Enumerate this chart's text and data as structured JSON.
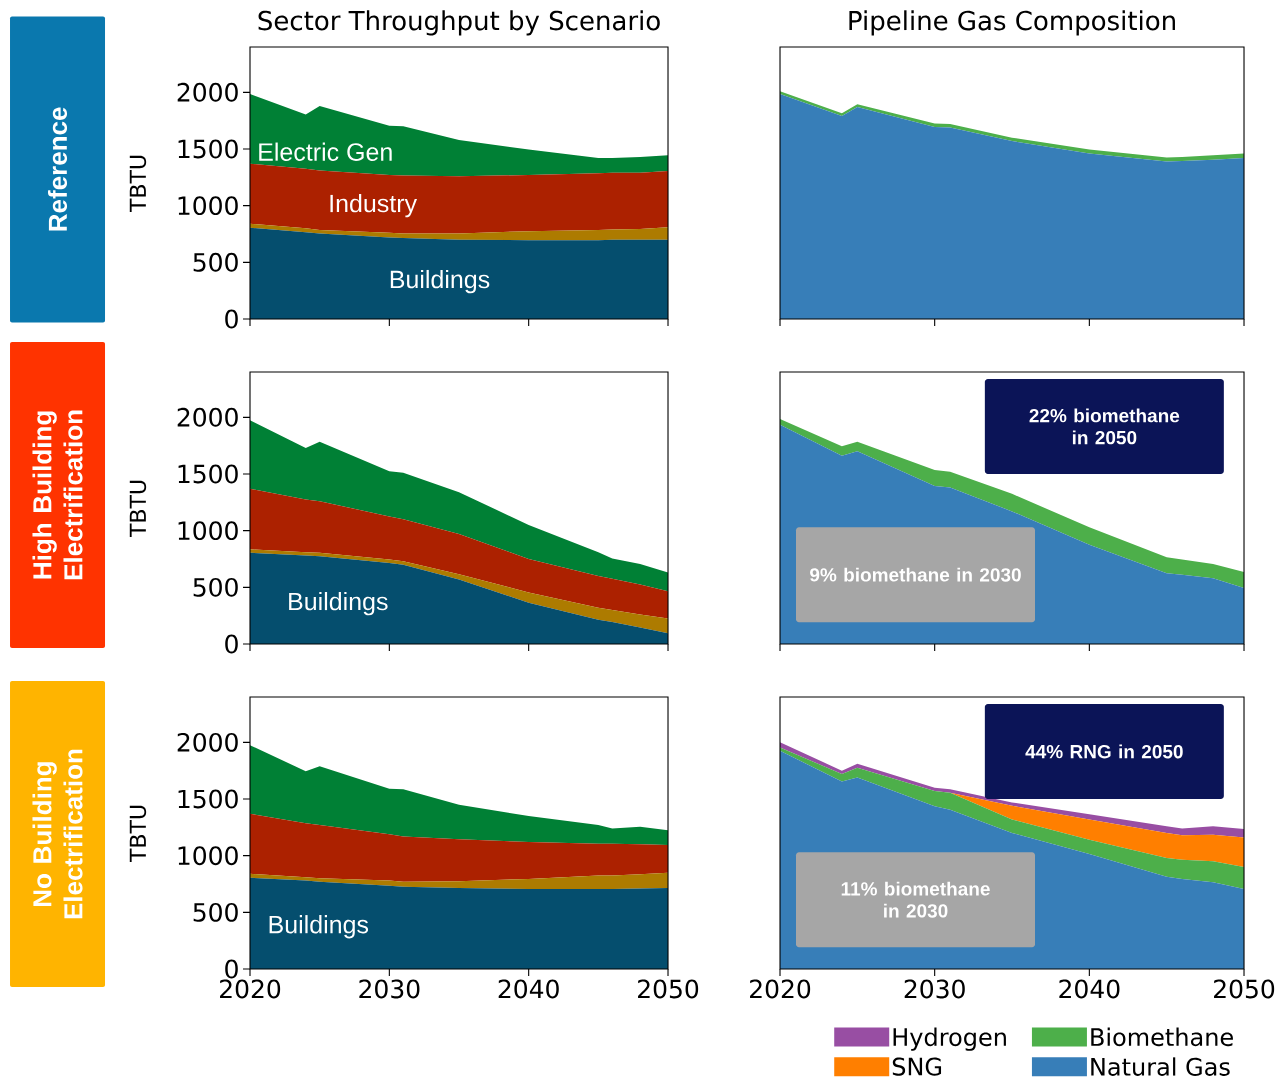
{
  "chart_data": [
    {
      "type": "area",
      "title": "Sector Throughput by Scenario",
      "ylabel": "TBTU",
      "stacked": true,
      "x": [
        2020,
        2024,
        2025,
        2030,
        2031,
        2035,
        2040,
        2045,
        2046,
        2048,
        2050
      ],
      "xlim": [
        2020,
        2050
      ],
      "ylim": [
        0,
        2400
      ],
      "xticks": [
        2020,
        2030,
        2040,
        2050
      ],
      "yticks": [
        0,
        500,
        1000,
        1500,
        2000
      ],
      "tick_labels": "y",
      "annotations": [
        "Reference"
      ],
      "series": [
        {
          "name": "Buildings",
          "color": "#054e6e",
          "values": [
            805,
            765,
            755,
            720,
            715,
            700,
            695,
            695,
            700,
            700,
            700
          ]
        },
        {
          "color": "#ad7b00",
          "values": [
            35,
            35,
            30,
            40,
            40,
            55,
            80,
            90,
            90,
            95,
            110
          ]
        },
        {
          "name": "Industry",
          "color": "#ac2100",
          "values": [
            530,
            525,
            525,
            510,
            510,
            505,
            495,
            500,
            500,
            495,
            495
          ]
        },
        {
          "name": "Electric Gen",
          "color": "#008035",
          "values": [
            615,
            480,
            570,
            435,
            435,
            320,
            225,
            135,
            130,
            140,
            140
          ]
        }
      ]
    },
    {
      "type": "area",
      "title": "Pipeline Gas Composition",
      "stacked": true,
      "x": [
        2020,
        2024,
        2025,
        2030,
        2031,
        2035,
        2040,
        2045,
        2046,
        2048,
        2050
      ],
      "xlim": [
        2020,
        2050
      ],
      "ylim": [
        0,
        2400
      ],
      "xticks": [
        2020,
        2030,
        2040,
        2050
      ],
      "tick_labels": false,
      "series": [
        {
          "color": "#377eb8",
          "values": [
            1985,
            1790,
            1870,
            1695,
            1690,
            1570,
            1460,
            1390,
            1395,
            1405,
            1420
          ]
        },
        {
          "color": "#4daf4a",
          "values": [
            25,
            25,
            25,
            30,
            30,
            30,
            35,
            35,
            35,
            40,
            40
          ]
        }
      ]
    },
    {
      "type": "area",
      "ylabel": "TBTU",
      "stacked": true,
      "x": [
        2020,
        2024,
        2025,
        2030,
        2031,
        2035,
        2040,
        2045,
        2046,
        2048,
        2050
      ],
      "xlim": [
        2020,
        2050
      ],
      "ylim": [
        0,
        2400
      ],
      "xticks": [
        2020,
        2030,
        2040,
        2050
      ],
      "yticks": [
        0,
        500,
        1000,
        1500,
        2000
      ],
      "tick_labels": "y",
      "annotations": [
        "High Building Electrification"
      ],
      "series": [
        {
          "name": "Buildings",
          "color": "#054e6e",
          "values": [
            805,
            780,
            775,
            715,
            700,
            570,
            365,
            215,
            195,
            145,
            95
          ]
        },
        {
          "color": "#ad7b00",
          "values": [
            30,
            30,
            30,
            30,
            30,
            45,
            90,
            105,
            105,
            115,
            130
          ]
        },
        {
          "color": "#ac2100",
          "values": [
            535,
            465,
            455,
            380,
            370,
            355,
            295,
            280,
            275,
            265,
            240
          ]
        },
        {
          "color": "#008035",
          "values": [
            605,
            455,
            525,
            400,
            410,
            370,
            300,
            210,
            180,
            180,
            165
          ]
        }
      ]
    },
    {
      "type": "area",
      "stacked": true,
      "x": [
        2020,
        2024,
        2025,
        2030,
        2031,
        2035,
        2040,
        2045,
        2046,
        2048,
        2050
      ],
      "xlim": [
        2020,
        2050
      ],
      "ylim": [
        0,
        2400
      ],
      "xticks": [
        2020,
        2030,
        2040,
        2050
      ],
      "tick_labels": false,
      "annotations": [
        "22% biomethane in 2050",
        "9% biomethane in 2030"
      ],
      "series": [
        {
          "color": "#377eb8",
          "values": [
            1935,
            1660,
            1700,
            1395,
            1380,
            1170,
            875,
            625,
            610,
            580,
            495
          ]
        },
        {
          "color": "#4daf4a",
          "values": [
            50,
            85,
            85,
            140,
            140,
            155,
            155,
            140,
            135,
            125,
            140
          ]
        }
      ]
    },
    {
      "type": "area",
      "ylabel": "TBTU",
      "stacked": true,
      "x": [
        2020,
        2024,
        2025,
        2030,
        2031,
        2035,
        2040,
        2045,
        2046,
        2048,
        2050
      ],
      "xlim": [
        2020,
        2050
      ],
      "ylim": [
        0,
        2400
      ],
      "xticks": [
        2020,
        2030,
        2040,
        2050
      ],
      "yticks": [
        0,
        500,
        1000,
        1500,
        2000
      ],
      "annotations": [
        "No Building Electrification"
      ],
      "series": [
        {
          "name": "Buildings",
          "color": "#054e6e",
          "values": [
            805,
            780,
            770,
            735,
            725,
            715,
            705,
            705,
            705,
            710,
            715
          ]
        },
        {
          "color": "#ad7b00",
          "values": [
            35,
            30,
            30,
            45,
            45,
            60,
            90,
            120,
            120,
            125,
            135
          ]
        },
        {
          "color": "#ac2100",
          "values": [
            530,
            475,
            470,
            410,
            400,
            370,
            325,
            280,
            280,
            265,
            245
          ]
        },
        {
          "color": "#008035",
          "values": [
            605,
            460,
            520,
            400,
            415,
            305,
            230,
            165,
            135,
            155,
            130
          ]
        }
      ]
    },
    {
      "type": "area",
      "stacked": true,
      "x": [
        2020,
        2024,
        2025,
        2030,
        2031,
        2035,
        2040,
        2045,
        2046,
        2048,
        2050
      ],
      "xlim": [
        2020,
        2050
      ],
      "ylim": [
        0,
        2400
      ],
      "xticks": [
        2020,
        2030,
        2040,
        2050
      ],
      "tick_labels": "x",
      "legend": "bottom",
      "annotations": [
        "44% RNG in 2050",
        "11% biomethane in 2030"
      ],
      "series": [
        {
          "name": "Natural Gas",
          "color": "#377eb8",
          "values": [
            1925,
            1655,
            1690,
            1435,
            1405,
            1200,
            1015,
            815,
            795,
            765,
            705
          ]
        },
        {
          "name": "Biomethane",
          "color": "#4daf4a",
          "values": [
            30,
            65,
            85,
            135,
            150,
            120,
            125,
            165,
            170,
            185,
            195
          ]
        },
        {
          "name": "SNG",
          "color": "#ff7f00",
          "values": [
            0,
            0,
            0,
            0,
            0,
            120,
            180,
            220,
            215,
            235,
            260
          ]
        },
        {
          "name": "Hydrogen",
          "color": "#984ea3",
          "values": [
            45,
            30,
            35,
            30,
            30,
            30,
            45,
            60,
            60,
            75,
            75
          ]
        }
      ]
    }
  ]
}
